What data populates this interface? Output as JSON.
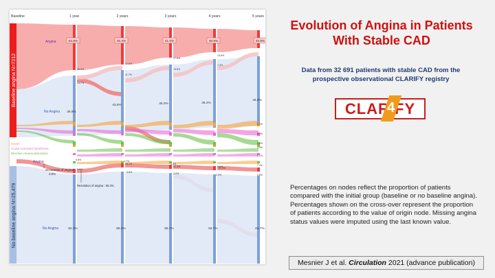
{
  "slide": {
    "title_line1": "Evolution of Angina in Patients",
    "title_line2": "With Stable CAD",
    "subtitle_line1": "Data from 32 691 patients with stable CAD from the",
    "subtitle_line2": "prospective observational CLARIFY registry",
    "logo_text": "CLAR FY",
    "logo_mark": "4",
    "note": "Percentages on nodes reflect the proportion of patients compared with the initial group (baseline or no baseline angina). Percentages shown on the cross-over represent the proportion of patients according to the value of origin node. Missing angina status values were imputed using the last known value.",
    "citation_author": "Mesnier J et al.",
    "citation_journal": "Circulation",
    "citation_rest": "2021 (advance publication)"
  },
  "chart_data": {
    "type": "sankey",
    "columns": [
      "Baseline",
      "1 year",
      "2 years",
      "3 years",
      "4 years",
      "5 years"
    ],
    "group_labels": {
      "baseline_angina": "Baseline angina N=7212",
      "no_baseline_angina": "No baseline angina N=25,479"
    },
    "legend": [
      "Death",
      "Acute coronary syndrome",
      "Elective revascularization"
    ],
    "node_labels": {
      "angina": "Angina",
      "no_angina": "No Angina"
    },
    "baseline_angina_group": {
      "angina_pct": [
        "54.8%",
        "46.4%",
        "41.0%",
        "36.9%",
        "33.9%"
      ],
      "no_angina_pct": [
        "39.8%",
        "43.6%",
        "45.3%",
        "46.2%",
        "45.8%"
      ],
      "crossover_labels": [
        "26.0%",
        "14.7%",
        "17.8%",
        "11.7%",
        "17.6%",
        "13.6%",
        "13.6%",
        "7.3%"
      ],
      "event_pct": [
        "8.0%",
        "5.3%",
        "7.0%"
      ]
    },
    "no_baseline_angina_group": {
      "angina_labels": [
        "0.8%",
        "3.2%",
        "4.7%",
        "16.1%",
        "3.8%",
        "4.4%",
        "31.3%",
        "3.0%",
        "3.9%",
        "21.4%",
        "2.9%"
      ],
      "no_angina_pct": [
        "92.3%",
        "89.2%",
        "86.7%",
        "84.7%",
        "81.7%"
      ],
      "event_pct": [
        "3.9%",
        "1.1%",
        "7.2%",
        "3.5%"
      ],
      "occurrence_text": "Occurence of angina",
      "occurrence_value": "4.8%",
      "resolution_text": "Resolution of angina : 56.3%"
    }
  }
}
